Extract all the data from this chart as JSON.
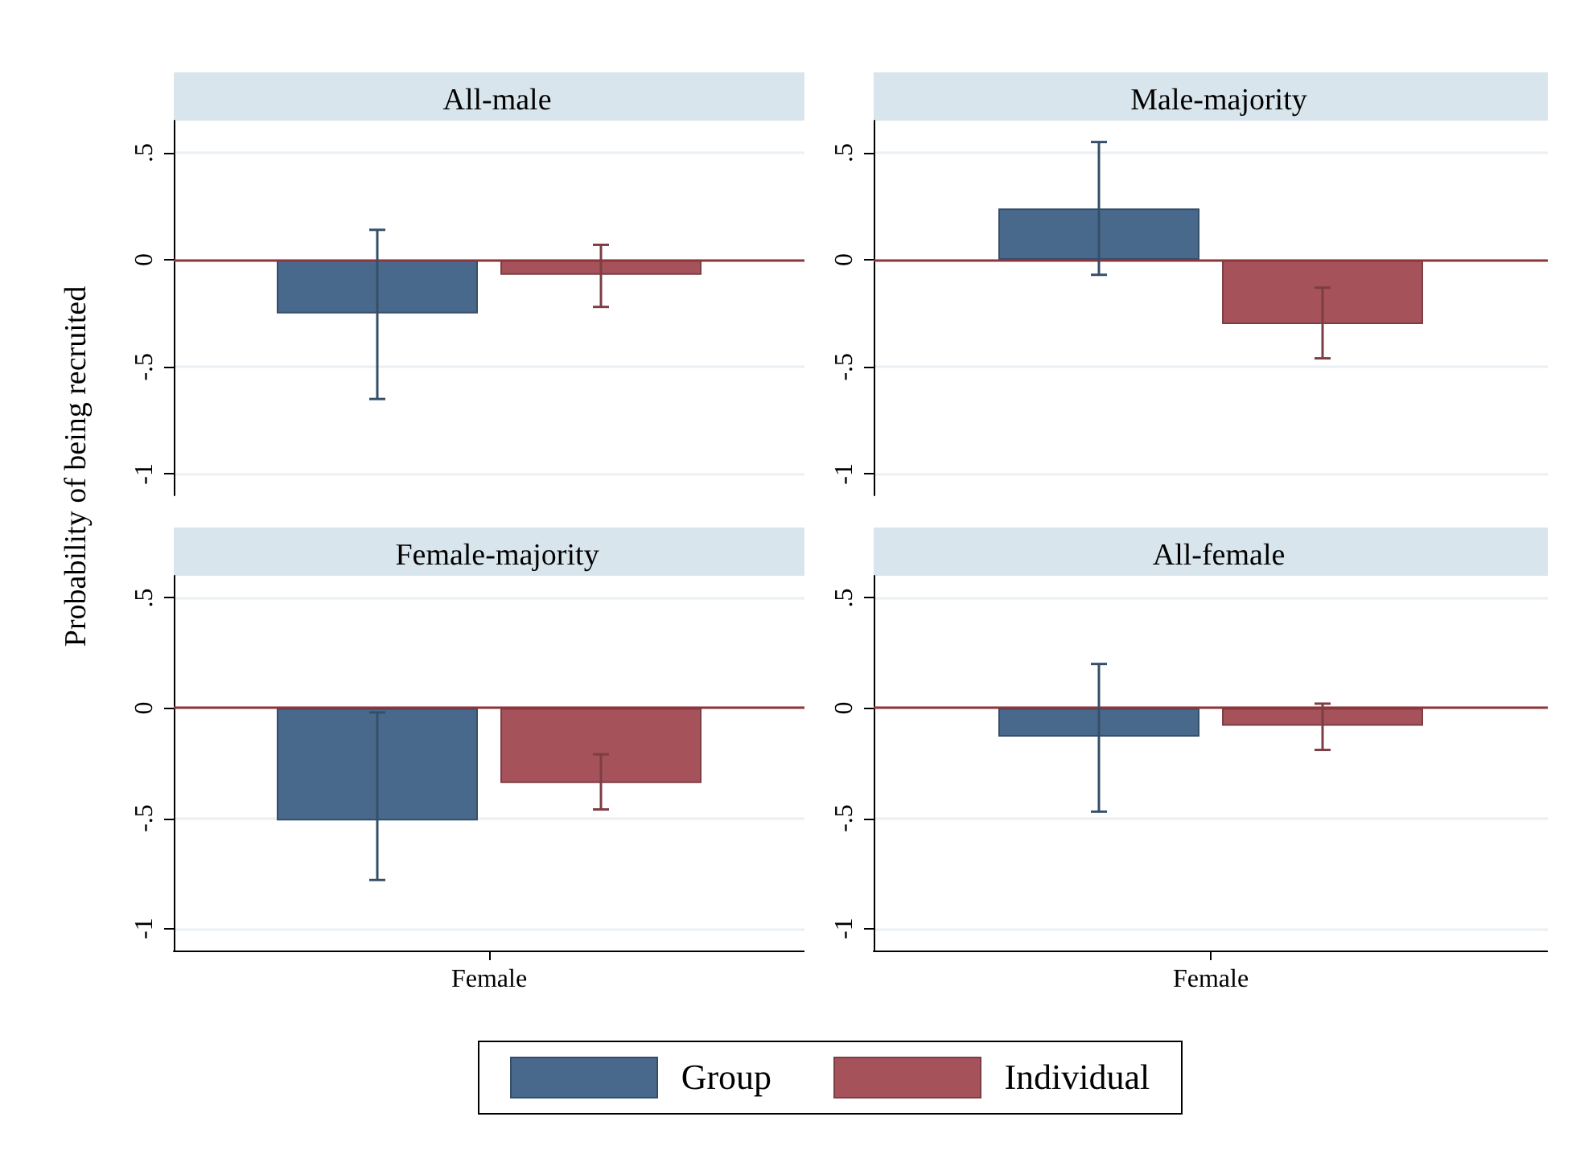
{
  "chart_data": [
    {
      "type": "bar",
      "title": "All-male",
      "ylabel": "Probability of being recruited",
      "categories": [
        null
      ],
      "series": [
        {
          "name": "Group",
          "color": "#48698c",
          "values": [
            -0.25
          ],
          "errors": [
            [
              -0.65,
              0.14
            ]
          ]
        },
        {
          "name": "Individual",
          "color": "#a5525a",
          "values": [
            -0.07
          ],
          "errors": [
            [
              -0.22,
              0.07
            ]
          ]
        }
      ],
      "ylim": [
        -1.1,
        0.65
      ],
      "yticks": [
        {
          "value": -1,
          "label": "-1"
        },
        {
          "value": -0.5,
          "label": "-.5"
        },
        {
          "value": 0,
          "label": "0"
        },
        {
          "value": 0.5,
          "label": ".5"
        }
      ],
      "ref_lines": [
        {
          "axis": "y",
          "value": 0,
          "color": "#90353b"
        }
      ],
      "grid": "y",
      "legend": "bottom",
      "tick_labels": "y"
    },
    {
      "type": "bar",
      "title": "Male-majority",
      "categories": [
        null
      ],
      "series": [
        {
          "name": "Group",
          "color": "#48698c",
          "values": [
            0.24
          ],
          "errors": [
            [
              -0.07,
              0.55
            ]
          ]
        },
        {
          "name": "Individual",
          "color": "#a5525a",
          "values": [
            -0.3
          ],
          "errors": [
            [
              -0.46,
              -0.13
            ]
          ]
        }
      ],
      "ylim": [
        -1.1,
        0.65
      ],
      "yticks": [
        {
          "value": -1,
          "label": "-1"
        },
        {
          "value": -0.5,
          "label": "-.5"
        },
        {
          "value": 0,
          "label": "0"
        },
        {
          "value": 0.5,
          "label": ".5"
        }
      ],
      "ref_lines": [
        {
          "axis": "y",
          "value": 0,
          "color": "#90353b"
        }
      ],
      "grid": "y",
      "tick_labels": "y"
    },
    {
      "type": "bar",
      "title": "Female-majority",
      "categories": [
        "Female"
      ],
      "series": [
        {
          "name": "Group",
          "color": "#48698c",
          "values": [
            -0.51
          ],
          "errors": [
            [
              -0.78,
              -0.02
            ]
          ]
        },
        {
          "name": "Individual",
          "color": "#a5525a",
          "values": [
            -0.34
          ],
          "errors": [
            [
              -0.46,
              -0.21
            ]
          ]
        }
      ],
      "ylim": [
        -1.1,
        0.6
      ],
      "yticks": [
        {
          "value": -1,
          "label": "-1"
        },
        {
          "value": -0.5,
          "label": "-.5"
        },
        {
          "value": 0,
          "label": "0"
        },
        {
          "value": 0.5,
          "label": ".5"
        }
      ],
      "ref_lines": [
        {
          "axis": "y",
          "value": 0,
          "color": "#90353b"
        }
      ],
      "grid": "y"
    },
    {
      "type": "bar",
      "title": "All-female",
      "categories": [
        "Female"
      ],
      "series": [
        {
          "name": "Group",
          "color": "#48698c",
          "values": [
            -0.13
          ],
          "errors": [
            [
              -0.47,
              0.2
            ]
          ]
        },
        {
          "name": "Individual",
          "color": "#a5525a",
          "values": [
            -0.08
          ],
          "errors": [
            [
              -0.19,
              0.02
            ]
          ]
        }
      ],
      "ylim": [
        -1.1,
        0.6
      ],
      "yticks": [
        {
          "value": -1,
          "label": "-1"
        },
        {
          "value": -0.5,
          "label": "-.5"
        },
        {
          "value": 0,
          "label": "0"
        },
        {
          "value": 0.5,
          "label": ".5"
        }
      ],
      "ref_lines": [
        {
          "axis": "y",
          "value": 0,
          "color": "#90353b"
        }
      ],
      "grid": "y"
    }
  ]
}
